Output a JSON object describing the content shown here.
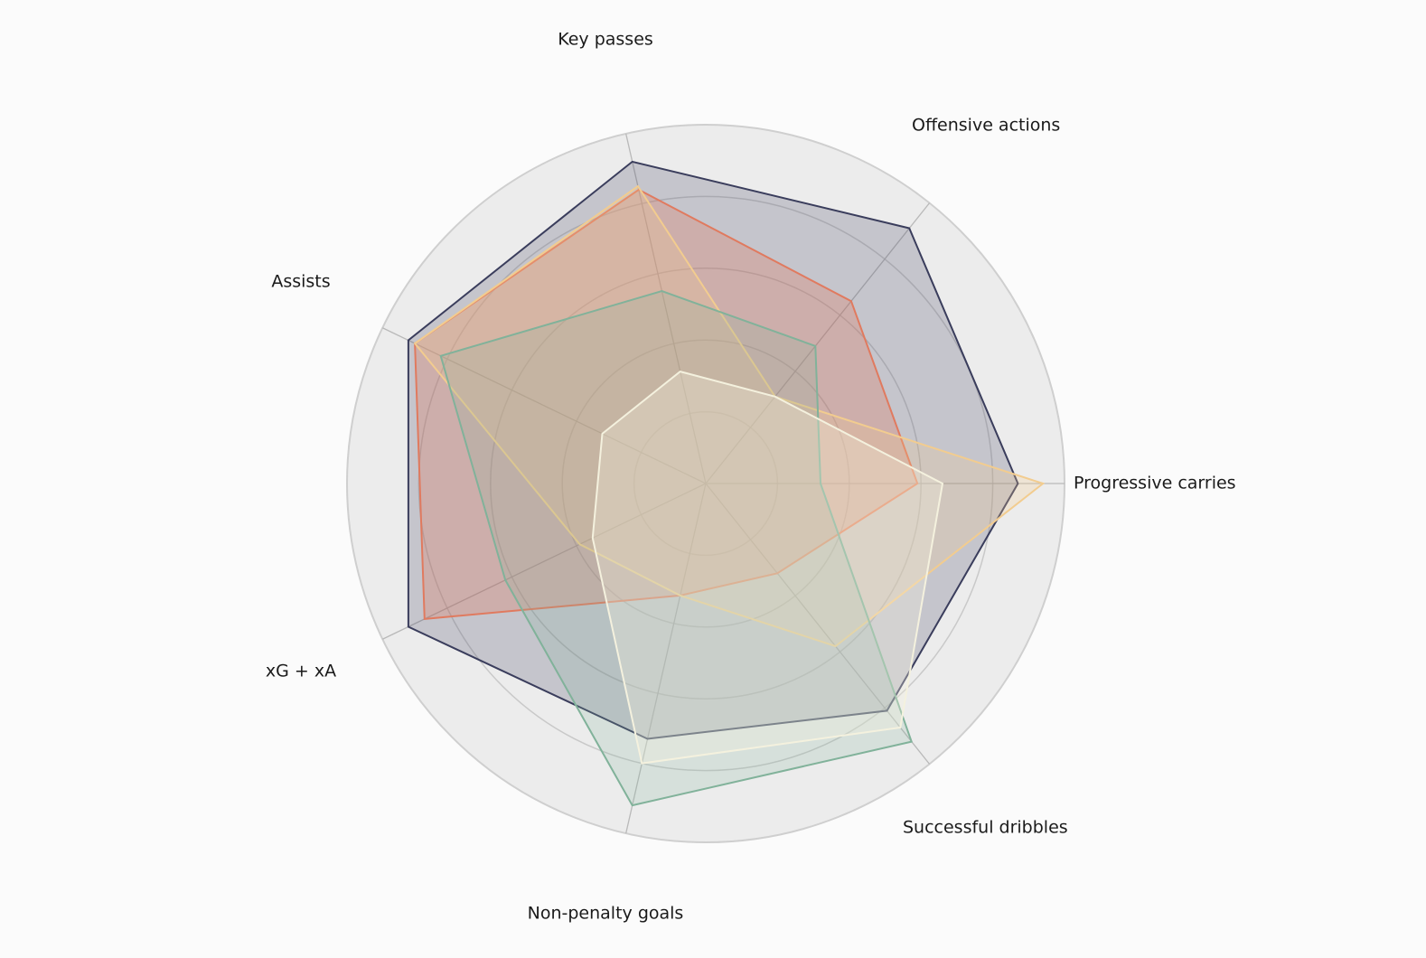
{
  "chart_data": {
    "type": "radar",
    "title": "",
    "axes": [
      "Progressive carries",
      "Offensive actions",
      "Key passes",
      "Assists",
      "xG + xA",
      "Non-penalty goals",
      "Successful dribbles"
    ],
    "range": [
      0,
      5
    ],
    "rings": 5,
    "grid": true,
    "legend": "none",
    "series": [
      {
        "color": "#3a3d5c",
        "fill_opacity": 0.22,
        "values": [
          4.35,
          4.55,
          4.6,
          4.6,
          4.6,
          3.65,
          4.05
        ]
      },
      {
        "color": "#e07a5f",
        "fill_opacity": 0.3,
        "values": [
          2.95,
          3.25,
          4.2,
          4.5,
          4.35,
          1.6,
          1.6
        ]
      },
      {
        "color": "#f2cc8f",
        "fill_opacity": 0.25,
        "values": [
          4.7,
          1.55,
          4.25,
          4.5,
          1.95,
          1.6,
          2.9
        ]
      },
      {
        "color": "#81b29a",
        "fill_opacity": 0.2,
        "values": [
          1.6,
          2.45,
          2.75,
          4.1,
          3.1,
          4.6,
          4.6
        ]
      },
      {
        "color": "#f4f1de",
        "fill_opacity": 0.3,
        "values": [
          3.3,
          1.55,
          1.6,
          1.6,
          1.75,
          4.0,
          4.35
        ]
      }
    ]
  }
}
